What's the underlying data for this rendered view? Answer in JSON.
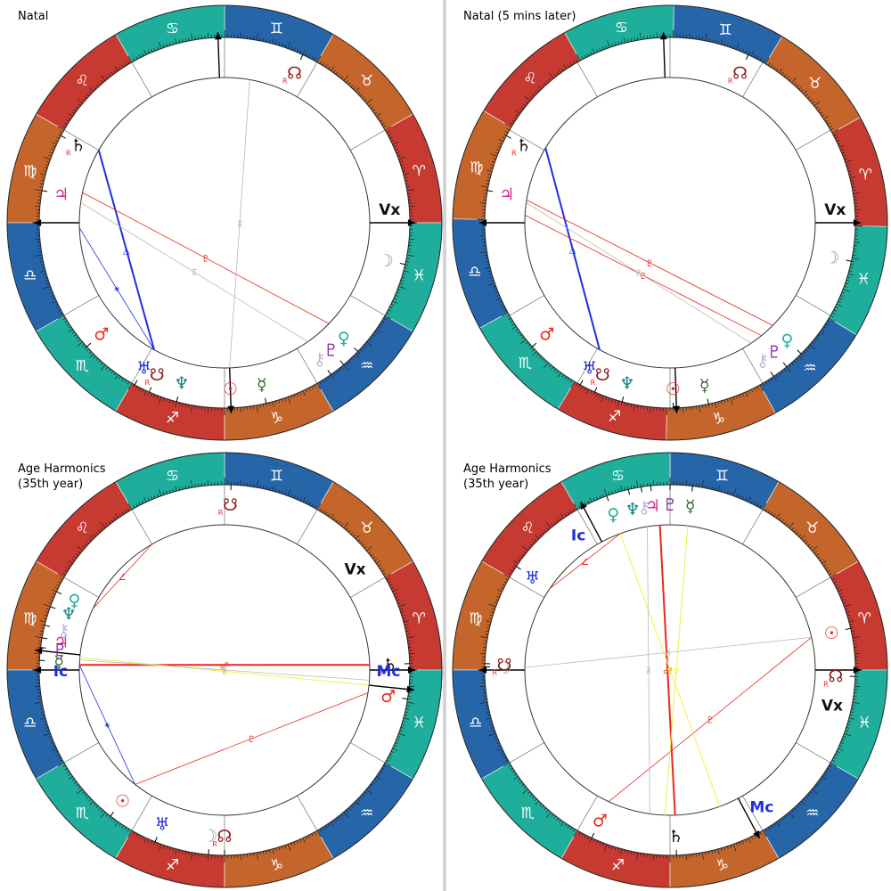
{
  "colors": {
    "fire": "#c63a31",
    "earth": "#c4662c",
    "air": "#2765a9",
    "water": "#1fae9b",
    "sign_glyph": "#ffffff",
    "aspect_red": "#e8281f",
    "aspect_blue": "#1f2fe0",
    "aspect_yellow": "#f0f04a",
    "aspect_grey": "#b8b8b8"
  },
  "charts": [
    {
      "title": "Natal",
      "asc": 180,
      "mc": 272,
      "axis_labels": {
        "mc": "",
        "ic": ""
      },
      "vertex": {
        "glyph": "Vx",
        "lon": 5
      },
      "planets": [
        {
          "glyph": "☉",
          "lon": 272,
          "color": "#e8281f",
          "retro": false
        },
        {
          "glyph": "☽",
          "lon": 347,
          "color": "#9a9a9a",
          "retro": false
        },
        {
          "glyph": "☿",
          "lon": 283,
          "color": "#2a6b1f",
          "retro": false
        },
        {
          "glyph": "♀",
          "lon": 316,
          "color": "#1fae9b",
          "retro": false
        },
        {
          "glyph": "♂",
          "lon": 222,
          "color": "#e8281f",
          "retro": false
        },
        {
          "glyph": "♃",
          "lon": 170,
          "color": "#d62b8f",
          "retro": false
        },
        {
          "glyph": "♄",
          "lon": 152,
          "color": "#111111",
          "retro": true
        },
        {
          "glyph": "♅",
          "lon": 241,
          "color": "#1f2fe0",
          "retro": false
        },
        {
          "glyph": "♆",
          "lon": 255,
          "color": "#0f7e7a",
          "retro": false
        },
        {
          "glyph": "♇",
          "lon": 310,
          "color": "#8b2ea6",
          "retro": false
        },
        {
          "glyph": "⚷",
          "lon": 305,
          "color": "#b7b7e0",
          "retro": false
        },
        {
          "glyph": "☊",
          "lon": 65,
          "color": "#8b1a1a",
          "retro": true
        },
        {
          "glyph": "☋",
          "lon": 246,
          "color": "#8b1a1a",
          "retro": true
        }
      ],
      "aspects": [
        {
          "from": 241,
          "to": 150,
          "kind": "blue-thick",
          "symbol": "△"
        },
        {
          "from": 316,
          "to": 168,
          "kind": "red",
          "symbol": "♇"
        },
        {
          "from": 241,
          "to": 182,
          "kind": "blue",
          "symbol": "✶"
        },
        {
          "from": 305,
          "to": 172,
          "kind": "grey",
          "symbol": "⊼"
        },
        {
          "from": 272,
          "to": 80,
          "kind": "grey",
          "symbol": "⊼"
        }
      ]
    },
    {
      "title": "Natal (5 mins later)",
      "asc": 181,
      "mc": 273,
      "axis_labels": {
        "mc": "",
        "ic": ""
      },
      "vertex": {
        "glyph": "Vx",
        "lon": 6
      },
      "planets": [
        {
          "glyph": "☉",
          "lon": 272,
          "color": "#e8281f",
          "retro": false
        },
        {
          "glyph": "☽",
          "lon": 349,
          "color": "#9a9a9a",
          "retro": false
        },
        {
          "glyph": "☿",
          "lon": 283,
          "color": "#2a6b1f",
          "retro": false
        },
        {
          "glyph": "♀",
          "lon": 316,
          "color": "#1fae9b",
          "retro": false
        },
        {
          "glyph": "♂",
          "lon": 223,
          "color": "#e8281f",
          "retro": false
        },
        {
          "glyph": "♃",
          "lon": 171,
          "color": "#d62b8f",
          "retro": false
        },
        {
          "glyph": "♄",
          "lon": 153,
          "color": "#111111",
          "retro": true
        },
        {
          "glyph": "♅",
          "lon": 242,
          "color": "#1f2fe0",
          "retro": false
        },
        {
          "glyph": "♆",
          "lon": 256,
          "color": "#0f7e7a",
          "retro": false
        },
        {
          "glyph": "♇",
          "lon": 310,
          "color": "#8b2ea6",
          "retro": false
        },
        {
          "glyph": "⚷",
          "lon": 305,
          "color": "#b7b7e0",
          "retro": false
        },
        {
          "glyph": "☊",
          "lon": 66,
          "color": "#8b1a1a",
          "retro": true
        },
        {
          "glyph": "☋",
          "lon": 247,
          "color": "#8b1a1a",
          "retro": true
        }
      ],
      "aspects": [
        {
          "from": 242,
          "to": 150,
          "kind": "blue-thick",
          "symbol": "△"
        },
        {
          "from": 316,
          "to": 172,
          "kind": "red",
          "symbol": "♇"
        },
        {
          "from": 310,
          "to": 178,
          "kind": "red",
          "symbol": "♇"
        },
        {
          "from": 305,
          "to": 173,
          "kind": "grey",
          "symbol": "⊼"
        }
      ]
    },
    {
      "title": "Age Harmonics\n(35th year)",
      "asc": 180,
      "mc": 354,
      "axis_labels": {
        "mc": "Mc",
        "ic": "Ic"
      },
      "vertex": {
        "glyph": "Vx",
        "lon": 38
      },
      "planets": [
        {
          "glyph": "☉",
          "lon": 232,
          "color": "#e8281f",
          "retro": false
        },
        {
          "glyph": "☽",
          "lon": 265,
          "color": "#9a9a9a",
          "retro": false
        },
        {
          "glyph": "☿",
          "lon": 177,
          "color": "#2a6b1f",
          "retro": false
        },
        {
          "glyph": "♀",
          "lon": 155,
          "color": "#1fae9b",
          "retro": false
        },
        {
          "glyph": "♂",
          "lon": 351,
          "color": "#e8281f",
          "retro": false
        },
        {
          "glyph": "♃",
          "lon": 170,
          "color": "#d62b8f",
          "retro": false
        },
        {
          "glyph": "♄",
          "lon": 2,
          "color": "#111111",
          "retro": true
        },
        {
          "glyph": "♅",
          "lon": 248,
          "color": "#1f2fe0",
          "retro": false
        },
        {
          "glyph": "♆",
          "lon": 160,
          "color": "#0f7e7a",
          "retro": false
        },
        {
          "glyph": "♇",
          "lon": 173,
          "color": "#8b2ea6",
          "retro": false
        },
        {
          "glyph": "⚷",
          "lon": 166,
          "color": "#b7b7e0",
          "retro": false
        },
        {
          "glyph": "☊",
          "lon": 270,
          "color": "#8b1a1a",
          "retro": true
        },
        {
          "glyph": "☋",
          "lon": 88,
          "color": "#8b1a1a",
          "retro": true
        }
      ],
      "aspects": [
        {
          "from": 232,
          "to": 351,
          "kind": "red",
          "symbol": "♇"
        },
        {
          "from": 232,
          "to": 178,
          "kind": "blue",
          "symbol": "✶"
        },
        {
          "from": 178,
          "to": 2,
          "kind": "red-thick",
          "symbol": "☍"
        },
        {
          "from": 175,
          "to": 354,
          "kind": "yellow",
          "symbol": "♀"
        },
        {
          "from": 176,
          "to": 356,
          "kind": "grey",
          "symbol": "⊼"
        },
        {
          "from": 155,
          "to": 120,
          "kind": "red",
          "symbol": "∠"
        }
      ]
    },
    {
      "title": "Age Harmonics\n(35th year)",
      "asc": 180,
      "mc": 298,
      "axis_labels": {
        "mc": "Mc",
        "ic": "Ic"
      },
      "vertex": {
        "glyph": "Vx",
        "lon": 348
      },
      "planets": [
        {
          "glyph": "☉",
          "lon": 13,
          "color": "#e8281f",
          "retro": false
        },
        {
          "glyph": "☽",
          "lon": 179,
          "color": "#9a9a9a",
          "retro": false
        },
        {
          "glyph": "☿",
          "lon": 83,
          "color": "#2a6b1f",
          "retro": false
        },
        {
          "glyph": "♀",
          "lon": 110,
          "color": "#1fae9b",
          "retro": false
        },
        {
          "glyph": "♂",
          "lon": 245,
          "color": "#e8281f",
          "retro": false
        },
        {
          "glyph": "♃",
          "lon": 96,
          "color": "#d62b8f",
          "retro": false
        },
        {
          "glyph": "♄",
          "lon": 272,
          "color": "#111111",
          "retro": false
        },
        {
          "glyph": "♅",
          "lon": 146,
          "color": "#1f2fe0",
          "retro": false
        },
        {
          "glyph": "♆",
          "lon": 103,
          "color": "#0f7e7a",
          "retro": false
        },
        {
          "glyph": "♇",
          "lon": 90,
          "color": "#8b2ea6",
          "retro": false
        },
        {
          "glyph": "⚷",
          "lon": 99,
          "color": "#b7b7e0",
          "retro": false
        },
        {
          "glyph": "☊",
          "lon": 358,
          "color": "#8b1a1a",
          "retro": true
        },
        {
          "glyph": "☋",
          "lon": 178,
          "color": "#8b1a1a",
          "retro": true
        }
      ],
      "aspects": [
        {
          "from": 94,
          "to": 272,
          "kind": "red-thick",
          "symbol": "☍"
        },
        {
          "from": 13,
          "to": 245,
          "kind": "red",
          "symbol": "♇"
        },
        {
          "from": 110,
          "to": 290,
          "kind": "yellow",
          "symbol": "♀"
        },
        {
          "from": 83,
          "to": 268,
          "kind": "yellow",
          "symbol": "♀"
        },
        {
          "from": 99,
          "to": 262,
          "kind": "grey",
          "symbol": "⊼"
        },
        {
          "from": 13,
          "to": 179,
          "kind": "grey",
          "symbol": "⊼"
        },
        {
          "from": 110,
          "to": 146,
          "kind": "red",
          "symbol": "∠"
        }
      ]
    }
  ],
  "signs": [
    {
      "glyph": "♈",
      "element": "fire"
    },
    {
      "glyph": "♉",
      "element": "earth"
    },
    {
      "glyph": "♊",
      "element": "air"
    },
    {
      "glyph": "♋",
      "element": "water"
    },
    {
      "glyph": "♌",
      "element": "fire"
    },
    {
      "glyph": "♍",
      "element": "earth"
    },
    {
      "glyph": "♎",
      "element": "air"
    },
    {
      "glyph": "♏",
      "element": "water"
    },
    {
      "glyph": "♐",
      "element": "fire"
    },
    {
      "glyph": "♑",
      "element": "earth"
    },
    {
      "glyph": "♒",
      "element": "air"
    },
    {
      "glyph": "♓",
      "element": "water"
    }
  ],
  "retro_mark": "R"
}
